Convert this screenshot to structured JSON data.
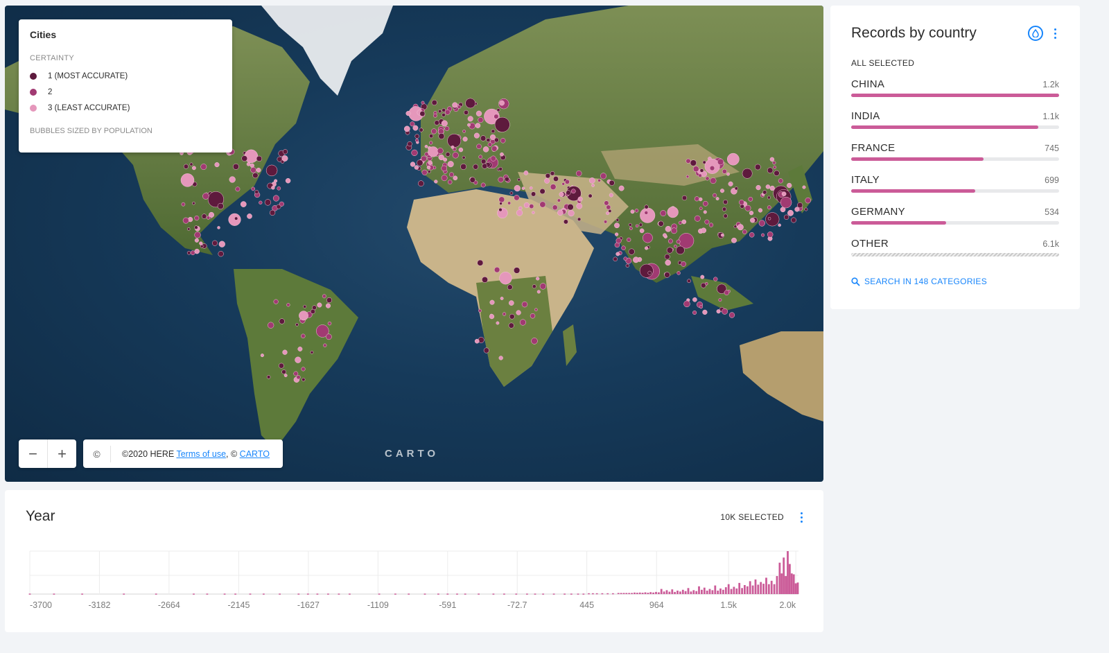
{
  "map": {
    "legend": {
      "title": "Cities",
      "subtitle": "CERTAINTY",
      "items": [
        {
          "label": "1 (MOST ACCURATE)",
          "color": "#5e1a3d"
        },
        {
          "label": "2",
          "color": "#a13a72"
        },
        {
          "label": "3 (LEAST ACCURATE)",
          "color": "#e597bb"
        }
      ],
      "footnote": "BUBBLES SIZED BY POPULATION"
    },
    "zoom": {
      "out": "−",
      "in": "+"
    },
    "attribution": {
      "icon": "©",
      "prefix": "©2020 HERE ",
      "terms_link": "Terms of use",
      "separator": ", © ",
      "carto_link": "CARTO"
    },
    "watermark": "CARTO",
    "colors": {
      "water": "#163a5a",
      "land": "#6b7e45",
      "desert": "#c9b48a"
    }
  },
  "records_widget": {
    "title": "Records by country",
    "status": "ALL SELECTED",
    "categories": [
      {
        "name": "CHINA",
        "value": "1.2k",
        "fraction": 1.0
      },
      {
        "name": "INDIA",
        "value": "1.1k",
        "fraction": 0.9
      },
      {
        "name": "FRANCE",
        "value": "745",
        "fraction": 0.635
      },
      {
        "name": "ITALY",
        "value": "699",
        "fraction": 0.595
      },
      {
        "name": "GERMANY",
        "value": "534",
        "fraction": 0.455
      },
      {
        "name": "OTHER",
        "value": "6.1k",
        "fraction": 1.0
      }
    ],
    "search_label": "SEARCH IN 148 CATEGORIES",
    "accent_color": "#cb5b98",
    "link_color": "#1785fb"
  },
  "year_widget": {
    "title": "Year",
    "selected": "10K SELECTED",
    "chart_data": {
      "type": "bar",
      "x_tick_labels": [
        "-3700",
        "-3182",
        "-2664",
        "-2145",
        "-1627",
        "-1109",
        "-591",
        "-72.7",
        "445",
        "964",
        "1.5k",
        "2.0k"
      ],
      "x_ticks": [
        -3700,
        -3182,
        -2664,
        -2145,
        -1627,
        -1109,
        -591,
        -72.7,
        445,
        964,
        1500,
        2000
      ],
      "xlim": [
        -3700,
        2020
      ],
      "ylim": [
        0,
        1000
      ],
      "grid": true,
      "bar_color": "#cb5b98",
      "bars": [
        {
          "x": -3700,
          "y": 12
        },
        {
          "x": -3520,
          "y": 12
        },
        {
          "x": -3310,
          "y": 12
        },
        {
          "x": -3000,
          "y": 12
        },
        {
          "x": -2760,
          "y": 12
        },
        {
          "x": -2480,
          "y": 12
        },
        {
          "x": -2380,
          "y": 12
        },
        {
          "x": -2250,
          "y": 12
        },
        {
          "x": -2170,
          "y": 12
        },
        {
          "x": -2060,
          "y": 12
        },
        {
          "x": -1960,
          "y": 12
        },
        {
          "x": -1840,
          "y": 12
        },
        {
          "x": -1700,
          "y": 12
        },
        {
          "x": -1630,
          "y": 12
        },
        {
          "x": -1560,
          "y": 12
        },
        {
          "x": -1480,
          "y": 12
        },
        {
          "x": -1400,
          "y": 12
        },
        {
          "x": -1320,
          "y": 12
        },
        {
          "x": -1100,
          "y": 12
        },
        {
          "x": -980,
          "y": 12
        },
        {
          "x": -880,
          "y": 12
        },
        {
          "x": -760,
          "y": 12
        },
        {
          "x": -660,
          "y": 12
        },
        {
          "x": -591,
          "y": 12
        },
        {
          "x": -520,
          "y": 12
        },
        {
          "x": -460,
          "y": 12
        },
        {
          "x": -360,
          "y": 12
        },
        {
          "x": -250,
          "y": 12
        },
        {
          "x": -170,
          "y": 12
        },
        {
          "x": -80,
          "y": 12
        },
        {
          "x": 0,
          "y": 12
        },
        {
          "x": 60,
          "y": 12
        },
        {
          "x": 120,
          "y": 12
        },
        {
          "x": 200,
          "y": 12
        },
        {
          "x": 280,
          "y": 12
        },
        {
          "x": 330,
          "y": 12
        },
        {
          "x": 380,
          "y": 12
        },
        {
          "x": 420,
          "y": 12
        },
        {
          "x": 460,
          "y": 20
        },
        {
          "x": 490,
          "y": 20
        },
        {
          "x": 520,
          "y": 20
        },
        {
          "x": 560,
          "y": 20
        },
        {
          "x": 600,
          "y": 20
        },
        {
          "x": 640,
          "y": 20
        },
        {
          "x": 680,
          "y": 25
        },
        {
          "x": 700,
          "y": 25
        },
        {
          "x": 720,
          "y": 25
        },
        {
          "x": 740,
          "y": 25
        },
        {
          "x": 760,
          "y": 25
        },
        {
          "x": 780,
          "y": 25
        },
        {
          "x": 800,
          "y": 35
        },
        {
          "x": 820,
          "y": 30
        },
        {
          "x": 840,
          "y": 35
        },
        {
          "x": 860,
          "y": 30
        },
        {
          "x": 880,
          "y": 40
        },
        {
          "x": 900,
          "y": 30
        },
        {
          "x": 920,
          "y": 45
        },
        {
          "x": 940,
          "y": 35
        },
        {
          "x": 960,
          "y": 50
        },
        {
          "x": 980,
          "y": 40
        },
        {
          "x": 1000,
          "y": 120
        },
        {
          "x": 1020,
          "y": 60
        },
        {
          "x": 1040,
          "y": 90
        },
        {
          "x": 1060,
          "y": 55
        },
        {
          "x": 1080,
          "y": 110
        },
        {
          "x": 1100,
          "y": 50
        },
        {
          "x": 1120,
          "y": 80
        },
        {
          "x": 1140,
          "y": 60
        },
        {
          "x": 1160,
          "y": 100
        },
        {
          "x": 1180,
          "y": 70
        },
        {
          "x": 1200,
          "y": 140
        },
        {
          "x": 1220,
          "y": 60
        },
        {
          "x": 1240,
          "y": 90
        },
        {
          "x": 1260,
          "y": 70
        },
        {
          "x": 1280,
          "y": 180
        },
        {
          "x": 1300,
          "y": 100
        },
        {
          "x": 1320,
          "y": 150
        },
        {
          "x": 1340,
          "y": 80
        },
        {
          "x": 1360,
          "y": 120
        },
        {
          "x": 1380,
          "y": 90
        },
        {
          "x": 1400,
          "y": 200
        },
        {
          "x": 1420,
          "y": 80
        },
        {
          "x": 1440,
          "y": 130
        },
        {
          "x": 1460,
          "y": 100
        },
        {
          "x": 1480,
          "y": 160
        },
        {
          "x": 1500,
          "y": 230
        },
        {
          "x": 1520,
          "y": 120
        },
        {
          "x": 1540,
          "y": 170
        },
        {
          "x": 1560,
          "y": 130
        },
        {
          "x": 1580,
          "y": 260
        },
        {
          "x": 1600,
          "y": 140
        },
        {
          "x": 1620,
          "y": 210
        },
        {
          "x": 1640,
          "y": 180
        },
        {
          "x": 1660,
          "y": 300
        },
        {
          "x": 1680,
          "y": 200
        },
        {
          "x": 1700,
          "y": 340
        },
        {
          "x": 1720,
          "y": 220
        },
        {
          "x": 1740,
          "y": 280
        },
        {
          "x": 1760,
          "y": 240
        },
        {
          "x": 1780,
          "y": 380
        },
        {
          "x": 1800,
          "y": 230
        },
        {
          "x": 1820,
          "y": 310
        },
        {
          "x": 1840,
          "y": 230
        },
        {
          "x": 1860,
          "y": 420
        },
        {
          "x": 1880,
          "y": 730
        },
        {
          "x": 1895,
          "y": 480
        },
        {
          "x": 1910,
          "y": 850
        },
        {
          "x": 1925,
          "y": 420
        },
        {
          "x": 1940,
          "y": 1000
        },
        {
          "x": 1955,
          "y": 700
        },
        {
          "x": 1970,
          "y": 480
        },
        {
          "x": 1985,
          "y": 460
        },
        {
          "x": 2000,
          "y": 250
        },
        {
          "x": 2015,
          "y": 270
        }
      ]
    }
  }
}
